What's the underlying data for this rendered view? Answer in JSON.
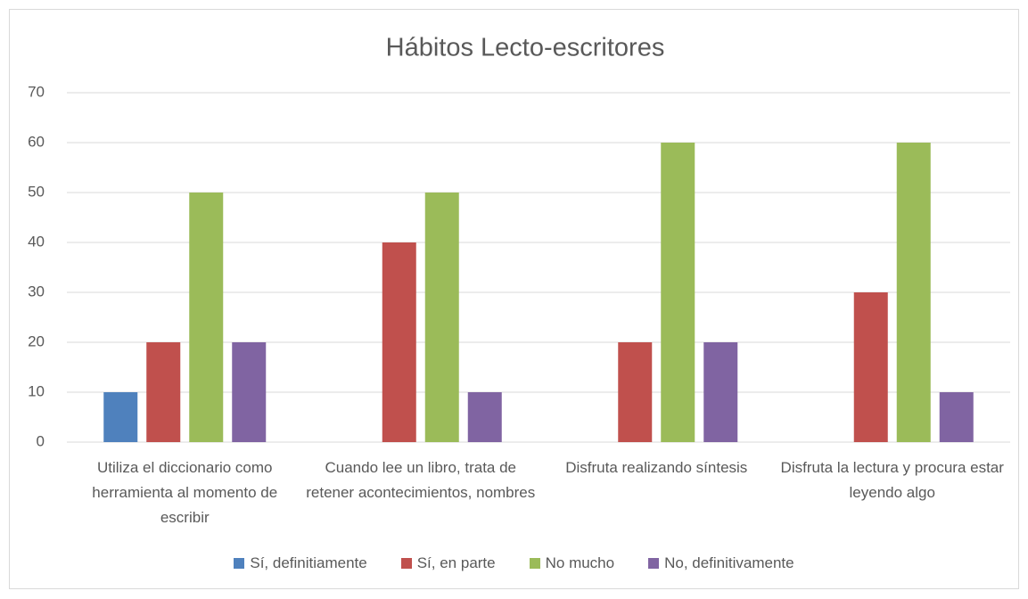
{
  "chart_data": {
    "type": "bar",
    "title": "Hábitos Lecto-escritores",
    "categories": [
      "Utiliza el diccionario como herramienta al momento de escribir",
      "Cuando lee un libro, trata de retener acontecimientos, nombres",
      "Disfruta realizando síntesis",
      "Disfruta la lectura y procura estar leyendo algo"
    ],
    "series": [
      {
        "name": "Sí, definitiamente",
        "color": "#4f81bd",
        "values": [
          10,
          0,
          0,
          0
        ]
      },
      {
        "name": "Sí, en parte",
        "color": "#c0504d",
        "values": [
          20,
          40,
          20,
          30
        ]
      },
      {
        "name": "No mucho",
        "color": "#9bbb59",
        "values": [
          50,
          50,
          60,
          60
        ]
      },
      {
        "name": "No, definitivamente",
        "color": "#8064a2",
        "values": [
          20,
          10,
          20,
          10
        ]
      }
    ],
    "ylim": [
      0,
      70
    ],
    "yticks": [
      0,
      10,
      20,
      30,
      40,
      50,
      60,
      70
    ],
    "grid": true,
    "legend": "bottom"
  }
}
